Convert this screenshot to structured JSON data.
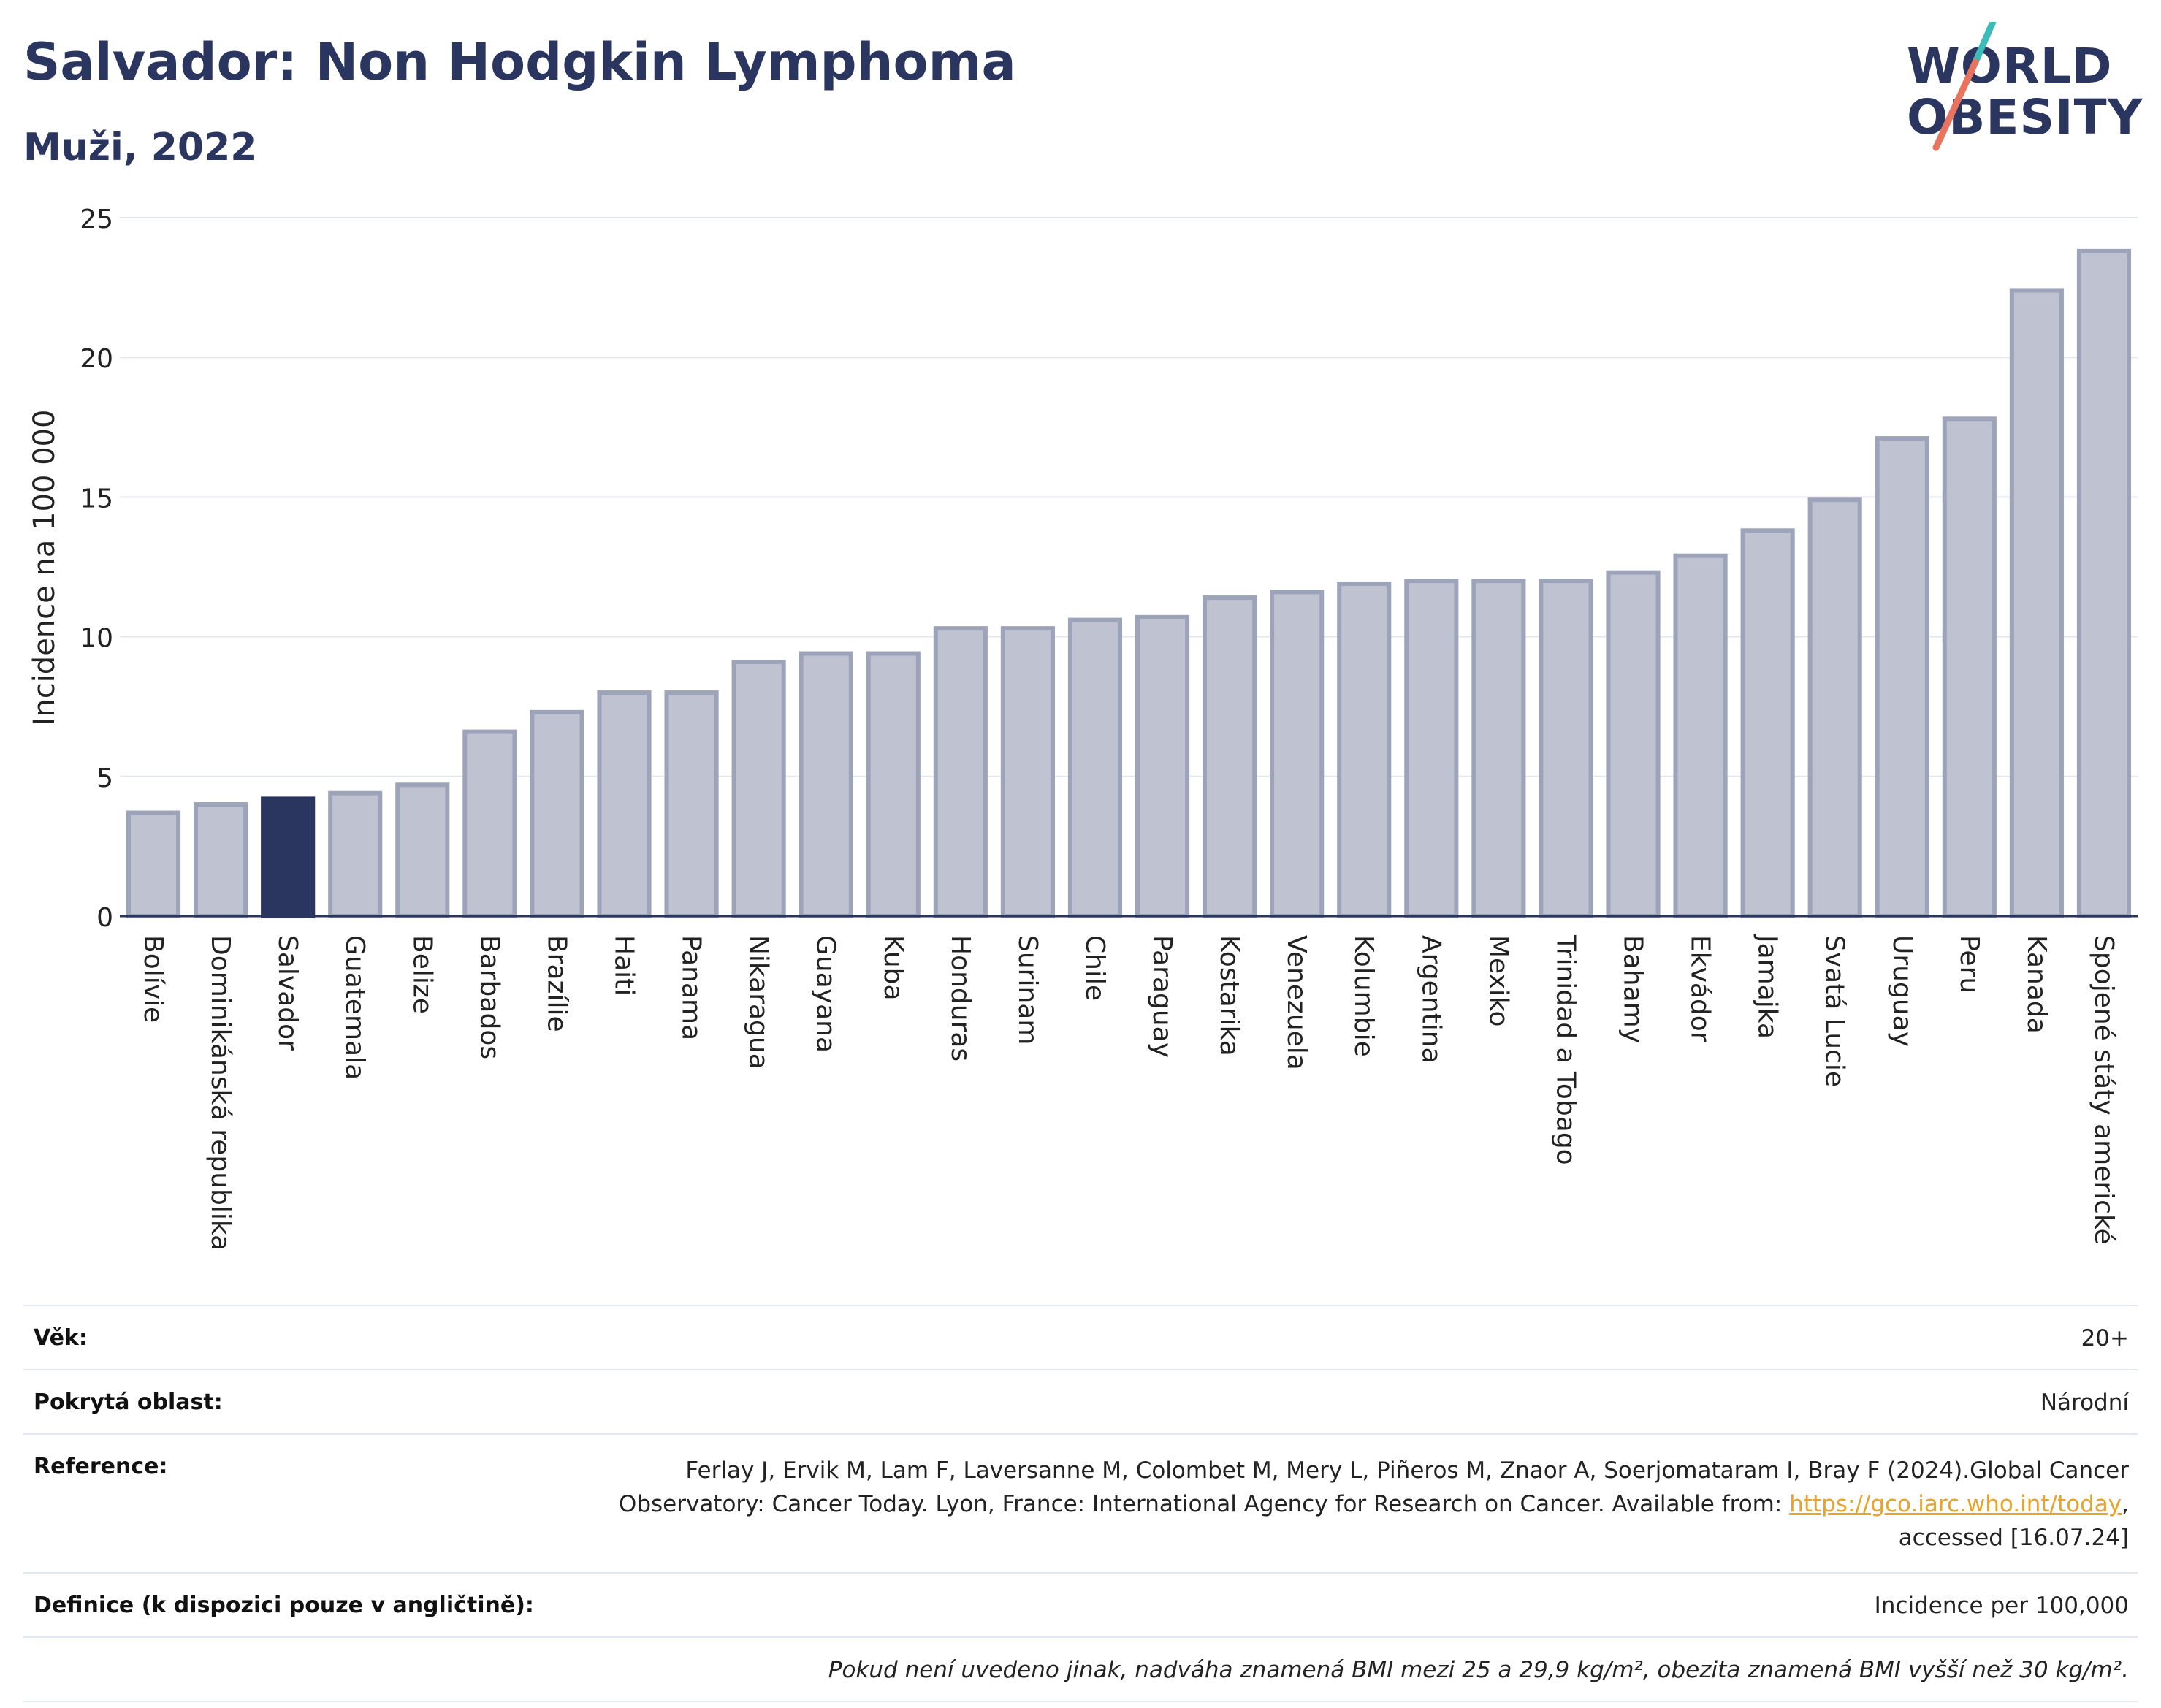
{
  "title": "Salvador: Non Hodgkin Lymphoma",
  "subtitle": "Muži, 2022",
  "logo": {
    "line1": "WORLD",
    "line2": "OBESITY"
  },
  "chart_data": {
    "type": "bar",
    "ylabel": "Incidence na 100 000",
    "ylim": [
      0,
      25
    ],
    "yticks": [
      "0",
      "5",
      "10",
      "15",
      "20",
      "25"
    ],
    "grid": true,
    "highlight": "Salvador",
    "highlight_color": "#2b3660",
    "bar_color": "#bfc3d1",
    "bar_edge_color": "#9da3b8",
    "categories": [
      "Bolívie",
      "Dominikánská republika",
      "Salvador",
      "Guatemala",
      "Belize",
      "Barbados",
      "Brazílie",
      "Haiti",
      "Panama",
      "Nikaragua",
      "Guayana",
      "Kuba",
      "Honduras",
      "Surinam",
      "Chile",
      "Paraguay",
      "Kostarika",
      "Venezuela",
      "Kolumbie",
      "Argentina",
      "Mexiko",
      "Trinidad a Tobago",
      "Bahamy",
      "Ekvádor",
      "Jamajka",
      "Svatá Lucie",
      "Uruguay",
      "Peru",
      "Kanada",
      "Spojené státy americké"
    ],
    "values": [
      3.7,
      4.0,
      4.2,
      4.4,
      4.7,
      6.6,
      7.3,
      8.0,
      8.0,
      9.1,
      9.4,
      9.4,
      10.3,
      10.3,
      10.6,
      10.7,
      11.4,
      11.6,
      11.9,
      12.0,
      12.0,
      12.0,
      12.3,
      12.9,
      13.8,
      14.9,
      17.1,
      17.8,
      22.4,
      23.8
    ]
  },
  "info": {
    "age_label": "Věk:",
    "age_value": "20+",
    "area_label": "Pokrytá oblast:",
    "area_value": "Národní",
    "reference_label": "Reference:",
    "reference_text_line1": "Ferlay J, Ervik M, Lam F, Laversanne M, Colombet M, Mery L, Piñeros M, Znaor A, Soerjomataram I, Bray F (2024).Global Cancer",
    "reference_text_line2": "Observatory: Cancer Today. Lyon, France: International Agency for Research on Cancer. Available from:",
    "reference_link": "https://gco.iarc.who.int/today",
    "reference_text_line3": "accessed [16.07.24]",
    "definition_label": "Definice (k dispozici pouze v angličtině):",
    "definition_value": "Incidence per 100,000",
    "note": "Pokud není uvedeno jinak, nadváha znamená BMI mezi 25 a 29,9 kg/m², obezita znamená BMI vyšší než 30 kg/m²."
  }
}
